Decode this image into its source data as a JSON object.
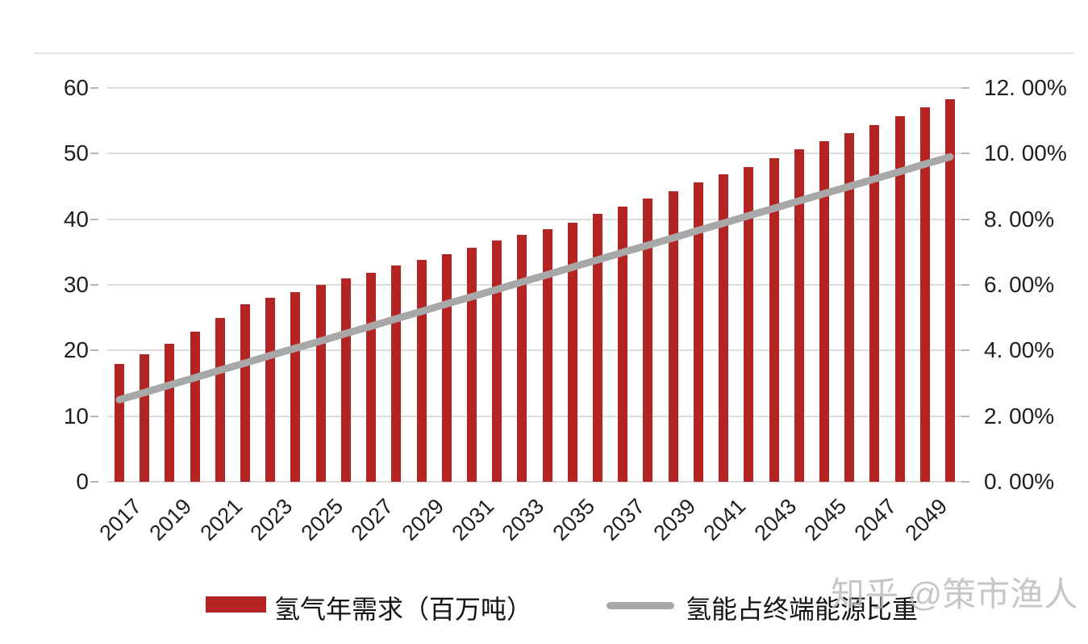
{
  "header": {
    "divider": true
  },
  "legend": {
    "bar_label": "氢气年需求（百万吨）",
    "line_label": "氢能占终端能源比重"
  },
  "watermark": {
    "text": "知乎 @策市渔人"
  },
  "colors": {
    "bar": "#b42423",
    "line": "#a8a8a8",
    "grid": "#dcdcdc",
    "text": "#1f1f1f"
  },
  "chart_data": {
    "type": "bar",
    "title": "",
    "xlabel": "",
    "ylabel": "",
    "grid": true,
    "legend_position": "bottom",
    "x": [
      2017,
      2018,
      2019,
      2020,
      2021,
      2022,
      2023,
      2024,
      2025,
      2026,
      2027,
      2028,
      2029,
      2030,
      2031,
      2032,
      2033,
      2034,
      2035,
      2036,
      2037,
      2038,
      2039,
      2040,
      2041,
      2042,
      2043,
      2044,
      2045,
      2046,
      2047,
      2048,
      2049,
      2050
    ],
    "x_tick_labels": [
      "2017",
      "2019",
      "2021",
      "2023",
      "2025",
      "2027",
      "2029",
      "2031",
      "2033",
      "2035",
      "2037",
      "2039",
      "2041",
      "2043",
      "2045",
      "2047",
      "2049"
    ],
    "series": [
      {
        "name": "氢气年需求（百万吨）",
        "type": "bar",
        "axis": "left",
        "color": "#b42423",
        "values": [
          18.0,
          19.4,
          21.0,
          22.9,
          25.0,
          27.0,
          28.0,
          28.9,
          30.0,
          31.0,
          31.8,
          32.9,
          33.8,
          34.7,
          35.6,
          36.8,
          37.6,
          38.5,
          39.5,
          40.8,
          41.9,
          43.1,
          44.3,
          45.6,
          46.8,
          48.0,
          49.3,
          50.6,
          51.9,
          53.1,
          54.4,
          55.7,
          57.0,
          58.3
        ]
      },
      {
        "name": "氢能占终端能源比重",
        "type": "line",
        "axis": "right",
        "color": "#a8a8a8",
        "values": [
          2.5,
          2.72,
          2.95,
          3.17,
          3.4,
          3.62,
          3.85,
          4.07,
          4.29,
          4.52,
          4.74,
          4.97,
          5.19,
          5.42,
          5.64,
          5.86,
          6.09,
          6.31,
          6.54,
          6.76,
          6.99,
          7.21,
          7.43,
          7.66,
          7.88,
          8.11,
          8.33,
          8.56,
          8.78,
          9.0,
          9.23,
          9.45,
          9.68,
          9.9
        ]
      }
    ],
    "left_axis": {
      "range": [
        0,
        60
      ],
      "tick_labels": [
        "0",
        "10",
        "20",
        "30",
        "40",
        "50",
        "60"
      ]
    },
    "right_axis": {
      "range": [
        0,
        12
      ],
      "tick_labels": [
        "0. 00%",
        "2. 00%",
        "4. 00%",
        "6. 00%",
        "8. 00%",
        "10. 00%",
        "12. 00%"
      ]
    }
  }
}
